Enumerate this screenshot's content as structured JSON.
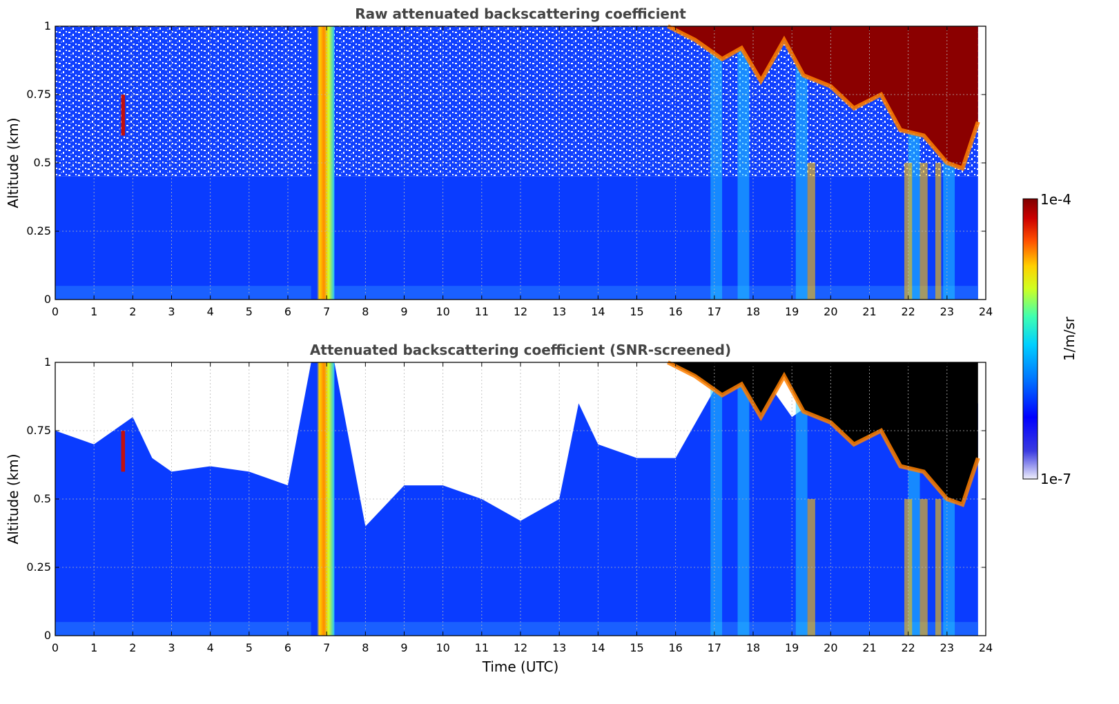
{
  "chart_data": [
    {
      "type": "heatmap",
      "title": "Raw attenuated backscattering coefficient",
      "xlabel": "",
      "ylabel": "Altitude (km)",
      "xlim": [
        0,
        24
      ],
      "ylim": [
        0,
        1
      ],
      "xticks": [
        "0",
        "1",
        "2",
        "3",
        "4",
        "5",
        "6",
        "7",
        "8",
        "9",
        "10",
        "11",
        "12",
        "13",
        "14",
        "15",
        "16",
        "17",
        "18",
        "19",
        "20",
        "21",
        "22",
        "23",
        "24"
      ],
      "yticks": [
        "0",
        "0.25",
        "0.5",
        "0.75",
        "1"
      ],
      "grid": true,
      "data_end_time": 23.8,
      "features": [
        {
          "label": "high-signal column",
          "time_start": 6.6,
          "time_end": 7.2,
          "altitude_range": [
            0,
            1
          ]
        },
        {
          "label": "thin feature",
          "time": 1.75,
          "altitude_range": [
            0.6,
            0.75
          ]
        },
        {
          "label": "strong layer (top)",
          "time_range": [
            15.8,
            23.8
          ],
          "altitude_range": [
            0.45,
            1.0
          ]
        }
      ]
    },
    {
      "type": "heatmap",
      "title": "Attenuated backscattering coefficient (SNR-screened)",
      "xlabel": "Time (UTC)",
      "ylabel": "Altitude (km)",
      "xlim": [
        0,
        24
      ],
      "ylim": [
        0,
        1
      ],
      "xticks": [
        "0",
        "1",
        "2",
        "3",
        "4",
        "5",
        "6",
        "7",
        "8",
        "9",
        "10",
        "11",
        "12",
        "13",
        "14",
        "15",
        "16",
        "17",
        "18",
        "19",
        "20",
        "21",
        "22",
        "23",
        "24"
      ],
      "yticks": [
        "0",
        "0.25",
        "0.5",
        "0.75",
        "1"
      ],
      "grid": true,
      "screened_top_profile": {
        "time": [
          0,
          1,
          2,
          2.5,
          3,
          4,
          5,
          6,
          6.6,
          7.2,
          8,
          9,
          10,
          11,
          12,
          13,
          13.5,
          14,
          15,
          16,
          17,
          18,
          19,
          20,
          21,
          22,
          23,
          23.8
        ],
        "altitude_km": [
          0.75,
          0.7,
          0.8,
          0.65,
          0.6,
          0.62,
          0.6,
          0.55,
          1.0,
          1.0,
          0.4,
          0.55,
          0.55,
          0.5,
          0.42,
          0.5,
          0.85,
          0.7,
          0.65,
          0.65,
          0.9,
          1.0,
          0.8,
          0.9,
          1.0,
          0.85,
          0.8,
          0.85
        ]
      }
    }
  ],
  "colorbar": {
    "label": "1/m/sr",
    "max_label": "1e-4",
    "min_label": "1e-7",
    "colors": [
      "#e8e8fa",
      "#0000ff",
      "#0070ff",
      "#00d0ff",
      "#40ffb0",
      "#d0ff20",
      "#ffd000",
      "#ff5000",
      "#cc0000",
      "#800000"
    ]
  }
}
